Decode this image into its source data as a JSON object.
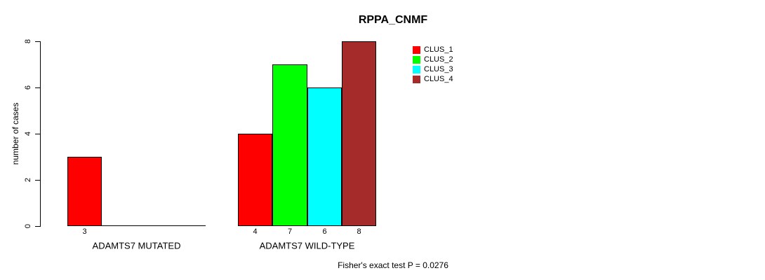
{
  "chart_data": {
    "type": "bar",
    "title": "RPPA_CNMF",
    "ylabel": "number of cases",
    "ylim": [
      0,
      8
    ],
    "yticks": [
      0,
      2,
      4,
      6,
      8
    ],
    "grid": false,
    "legend_position": "top-right",
    "legend": [
      {
        "label": "CLUS_1",
        "color": "#ff0000"
      },
      {
        "label": "CLUS_2",
        "color": "#00ff00"
      },
      {
        "label": "CLUS_3",
        "color": "#00ffff"
      },
      {
        "label": "CLUS_4",
        "color": "#a52a2a"
      }
    ],
    "categories": [
      "ADAMTS7 MUTATED",
      "ADAMTS7 WILD-TYPE"
    ],
    "groups": [
      {
        "label": "ADAMTS7 MUTATED",
        "values": [
          3,
          0,
          0,
          0
        ],
        "value_labels": [
          "3",
          "",
          "",
          ""
        ]
      },
      {
        "label": "ADAMTS7 WILD-TYPE",
        "values": [
          4,
          7,
          6,
          8
        ],
        "value_labels": [
          "4",
          "7",
          "6",
          "8"
        ]
      }
    ],
    "annotation": "Fisher's exact test P = 0.0276"
  }
}
